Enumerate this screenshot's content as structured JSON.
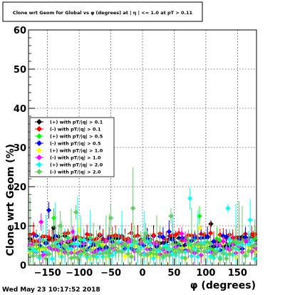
{
  "timestamp": "Wed May 23 10:17:52 2018",
  "chart_data": {
    "type": "scatter",
    "title": "Clone wrt Geom for Global vs φ (degrees) at | η | <= 1.0 at pT > 0.11",
    "xlabel": "φ (degrees)",
    "ylabel": "Clone wrt Geom (%)",
    "xlim": [
      -180,
      180
    ],
    "ylim": [
      0,
      60
    ],
    "xticks": [
      -150,
      -100,
      -50,
      0,
      50,
      100,
      150
    ],
    "xtick_labels": [
      "−150",
      "−100",
      "−50",
      "0",
      "50",
      "100",
      "150"
    ],
    "yticks": [
      0,
      10,
      20,
      30,
      40,
      50,
      60
    ],
    "ytick_labels": [
      "0",
      "10",
      "20",
      "30",
      "40",
      "50",
      "60"
    ],
    "grid": true,
    "legend_position": "center-left",
    "series": [
      {
        "name": "(+) with pT/|q| > 0.1",
        "color": "#000000",
        "typical": 6.0,
        "spread": 1.5,
        "outliers": [
          [
            108,
            10.5
          ],
          [
            -140,
            9.5
          ]
        ]
      },
      {
        "name": "(-) with pT/|q| > 0.1",
        "color": "#ff0000",
        "typical": 7.0,
        "spread": 1.2,
        "outliers": [
          [
            -172,
            8.0
          ],
          [
            175,
            7.5
          ]
        ]
      },
      {
        "name": "(+) with pT/|q| > 0.5",
        "color": "#00ff00",
        "typical": 5.0,
        "spread": 2.0,
        "outliers": [
          [
            90,
            12.5
          ],
          [
            -140,
            12.0
          ]
        ]
      },
      {
        "name": "(-) with pT/|q| > 0.5",
        "color": "#0000ff",
        "typical": 5.5,
        "spread": 2.0,
        "outliers": [
          [
            -148,
            14.0
          ],
          [
            42,
            8.5
          ]
        ]
      },
      {
        "name": "(+) with pT/|q| > 1.0",
        "color": "#ffff00",
        "typical": 3.5,
        "spread": 2.0,
        "outliers": [
          [
            90,
            9.5
          ],
          [
            -100,
            9.0
          ]
        ]
      },
      {
        "name": "(-) with pT/|q| > 1.0",
        "color": "#ff00ff",
        "typical": 4.5,
        "spread": 2.0,
        "outliers": [
          [
            -110,
            8.5
          ],
          [
            62,
            8.0
          ],
          [
            -160,
            11.0
          ]
        ]
      },
      {
        "name": "(+) with pT/|q| > 2.0",
        "color": "#00ffff",
        "typical": 4.0,
        "spread": 2.5,
        "outliers": [
          [
            75,
            17.0
          ],
          [
            135,
            14.5
          ],
          [
            170,
            11.5
          ]
        ]
      },
      {
        "name": "(-) with pT/|q| > 2.0",
        "color": "#66cc66",
        "typical": 4.0,
        "spread": 2.5,
        "outliers": [
          [
            -105,
            13.5
          ],
          [
            -15,
            14.5
          ],
          [
            45,
            12.5
          ],
          [
            -50,
            12.0
          ],
          [
            5,
            8.0
          ],
          [
            -130,
            10.0
          ]
        ]
      }
    ]
  }
}
